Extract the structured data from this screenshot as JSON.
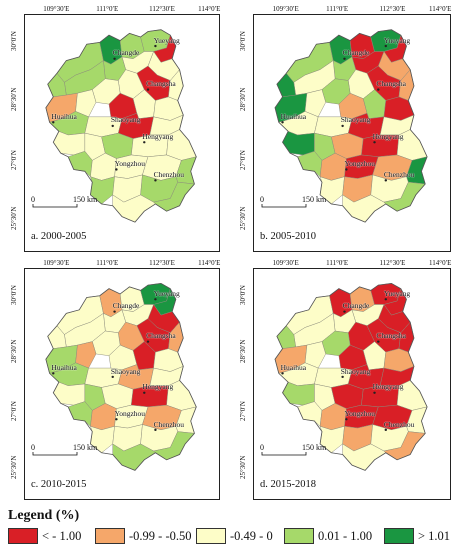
{
  "colors": {
    "c1": "#d91f26",
    "c2": "#f5a76a",
    "c3": "#fdfdc8",
    "c4": "#a6d96a",
    "c5": "#1a9641"
  },
  "axis": {
    "lon": [
      "109°30′E",
      "111°0′E",
      "112°30′E",
      "114°0′E"
    ],
    "lat": [
      "30°0′N",
      "28°30′N",
      "27°0′N",
      "25°30′N"
    ]
  },
  "scale_bar": {
    "zero": "0",
    "label": "150 km"
  },
  "cities": [
    "Changde",
    "Yueyang",
    "Changsha",
    "Huaihua",
    "Shaoyang",
    "Hengyang",
    "Yongzhou",
    "Chenzhou"
  ],
  "panels": [
    {
      "caption": "a. 2000-2005"
    },
    {
      "caption": "b. 2005-2010"
    },
    {
      "caption": "c. 2010-2015"
    },
    {
      "caption": "d. 2015-2018"
    }
  ],
  "legend": {
    "title": "Legend (%)",
    "items": [
      {
        "label": "< - 1.00",
        "color": "#d91f26"
      },
      {
        "label": "-0.99 - -0.50",
        "color": "#f5a76a"
      },
      {
        "label": "-0.49 - 0",
        "color": "#fdfdc8"
      },
      {
        "label": "0.01 - 1.00",
        "color": "#a6d96a"
      },
      {
        "label": "> 1.01",
        "color": "#1a9641"
      }
    ]
  }
}
